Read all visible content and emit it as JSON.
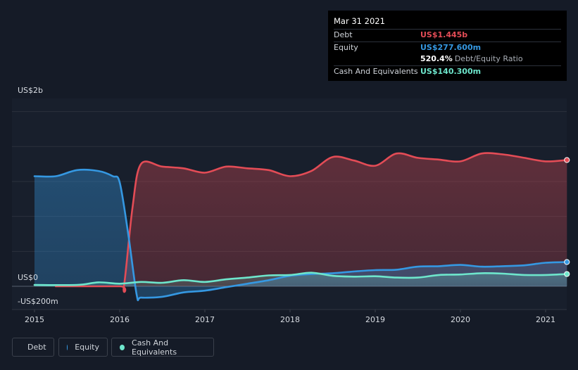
{
  "colors": {
    "debt": "#e34c56",
    "equity": "#3598e2",
    "cash": "#6ee6cc"
  },
  "tooltip": {
    "date": "Mar 31 2021",
    "rows": [
      {
        "label": "Debt",
        "value": "US$1.445b"
      },
      {
        "label": "Equity",
        "value": "US$277.600m"
      },
      {
        "ratio_value": "520.4%",
        "ratio_label": "Debt/Equity Ratio"
      },
      {
        "label": "Cash And Equivalents",
        "value": "US$140.300m"
      }
    ]
  },
  "chart_data": {
    "type": "area",
    "y_axis_labels": [
      {
        "text": "US$2b",
        "value": 2000
      },
      {
        "text": "US$0",
        "value": 0
      },
      {
        "text": "-US$200m",
        "value": -200
      }
    ],
    "ylim": [
      -200,
      2000
    ],
    "x_ticks": [
      "2015",
      "2016",
      "2017",
      "2018",
      "2019",
      "2020",
      "2021"
    ],
    "xlim": [
      2014.9,
      2021.25
    ],
    "series": [
      {
        "name": "Debt",
        "points": [
          [
            2015.25,
            0
          ],
          [
            2016.0,
            0
          ],
          [
            2016.05,
            0
          ],
          [
            2016.15,
            900
          ],
          [
            2016.25,
            1400
          ],
          [
            2016.5,
            1370
          ],
          [
            2016.75,
            1350
          ],
          [
            2017.0,
            1300
          ],
          [
            2017.25,
            1370
          ],
          [
            2017.5,
            1350
          ],
          [
            2017.75,
            1330
          ],
          [
            2018.0,
            1260
          ],
          [
            2018.25,
            1320
          ],
          [
            2018.5,
            1480
          ],
          [
            2018.75,
            1440
          ],
          [
            2019.0,
            1380
          ],
          [
            2019.25,
            1520
          ],
          [
            2019.5,
            1470
          ],
          [
            2019.75,
            1450
          ],
          [
            2020.0,
            1430
          ],
          [
            2020.25,
            1520
          ],
          [
            2020.5,
            1510
          ],
          [
            2020.75,
            1470
          ],
          [
            2021.0,
            1430
          ],
          [
            2021.25,
            1445
          ]
        ]
      },
      {
        "name": "Equity",
        "points": [
          [
            2015.0,
            1260
          ],
          [
            2015.25,
            1260
          ],
          [
            2015.5,
            1330
          ],
          [
            2015.75,
            1320
          ],
          [
            2015.92,
            1260
          ],
          [
            2016.0,
            1190
          ],
          [
            2016.1,
            600
          ],
          [
            2016.2,
            -100
          ],
          [
            2016.25,
            -130
          ],
          [
            2016.5,
            -120
          ],
          [
            2016.75,
            -70
          ],
          [
            2017.0,
            -50
          ],
          [
            2017.25,
            -10
          ],
          [
            2017.5,
            30
          ],
          [
            2017.75,
            70
          ],
          [
            2018.0,
            120
          ],
          [
            2018.25,
            140
          ],
          [
            2018.5,
            150
          ],
          [
            2018.75,
            170
          ],
          [
            2019.0,
            185
          ],
          [
            2019.25,
            190
          ],
          [
            2019.5,
            225
          ],
          [
            2019.75,
            230
          ],
          [
            2020.0,
            245
          ],
          [
            2020.25,
            225
          ],
          [
            2020.5,
            230
          ],
          [
            2020.75,
            240
          ],
          [
            2021.0,
            270
          ],
          [
            2021.25,
            277.6
          ]
        ]
      },
      {
        "name": "Cash And Equivalents",
        "points": [
          [
            2015.0,
            15
          ],
          [
            2015.5,
            15
          ],
          [
            2015.75,
            45
          ],
          [
            2016.0,
            30
          ],
          [
            2016.25,
            50
          ],
          [
            2016.5,
            40
          ],
          [
            2016.75,
            70
          ],
          [
            2017.0,
            50
          ],
          [
            2017.25,
            80
          ],
          [
            2017.5,
            100
          ],
          [
            2017.75,
            125
          ],
          [
            2018.0,
            130
          ],
          [
            2018.25,
            155
          ],
          [
            2018.5,
            120
          ],
          [
            2018.75,
            110
          ],
          [
            2019.0,
            115
          ],
          [
            2019.25,
            100
          ],
          [
            2019.5,
            100
          ],
          [
            2019.75,
            130
          ],
          [
            2020.0,
            135
          ],
          [
            2020.25,
            150
          ],
          [
            2020.5,
            145
          ],
          [
            2020.75,
            130
          ],
          [
            2021.0,
            130
          ],
          [
            2021.25,
            140.3
          ]
        ]
      }
    ]
  },
  "legend": [
    {
      "label": "Debt",
      "color_key": "debt"
    },
    {
      "label": "Equity",
      "color_key": "equity"
    },
    {
      "label": "Cash And Equivalents",
      "color_key": "cash"
    }
  ]
}
